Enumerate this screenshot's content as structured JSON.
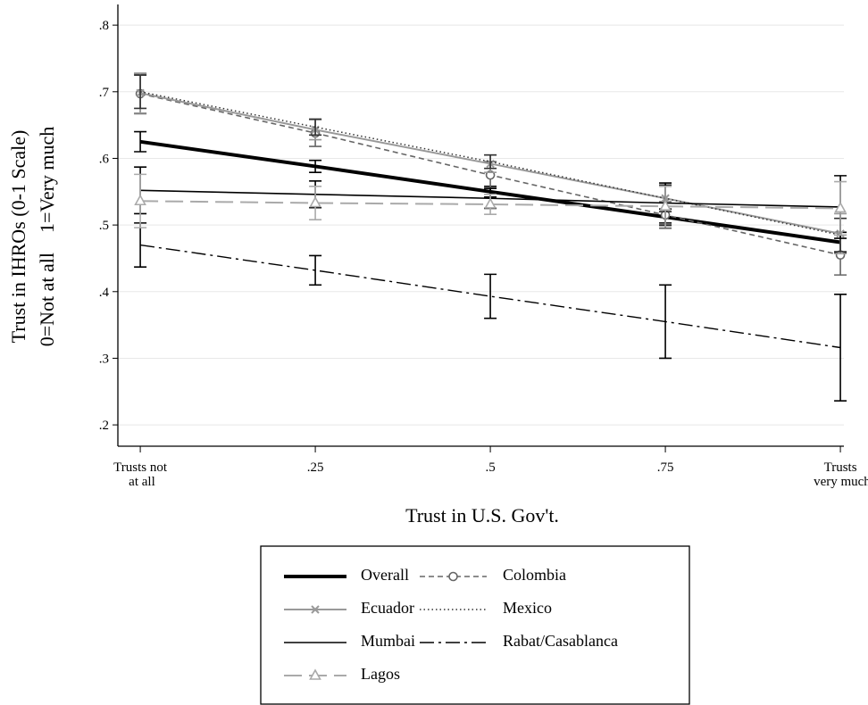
{
  "chart_data": {
    "type": "line",
    "xlabel": "Trust in U.S. Gov't.",
    "ylabel": "Trust in IHROs (0-1 Scale)",
    "ylabel2": "0=Not at all    1=Very much",
    "x": [
      0,
      0.25,
      0.5,
      0.75,
      1
    ],
    "xlim": [
      -0.032,
      1.005
    ],
    "ylim": [
      0.168,
      0.831
    ],
    "xticks": [
      {
        "value": 0,
        "label": "Trusts not\nat all"
      },
      {
        "value": 0.25,
        "label": ".25"
      },
      {
        "value": 0.5,
        "label": ".5"
      },
      {
        "value": 0.75,
        "label": ".75"
      },
      {
        "value": 1,
        "label": "Trusts\nvery much"
      }
    ],
    "yticks": [
      {
        "value": 0.2,
        "label": ".2"
      },
      {
        "value": 0.3,
        "label": ".3"
      },
      {
        "value": 0.4,
        "label": ".4"
      },
      {
        "value": 0.5,
        "label": ".5"
      },
      {
        "value": 0.6,
        "label": ".6"
      },
      {
        "value": 0.7,
        "label": ".7"
      },
      {
        "value": 0.8,
        "label": ".8"
      }
    ],
    "grid": true,
    "legend": "bottom",
    "series": [
      {
        "name": "Overall",
        "color": "#000000",
        "width": 4,
        "style": "solid",
        "values": [
          0.625,
          0.588,
          0.55,
          0.512,
          0.474
        ],
        "errors": [
          0.015,
          0.009,
          0.008,
          0.012,
          0.015
        ]
      },
      {
        "name": "Colombia",
        "color": "#666666",
        "width": 1.6,
        "style": "dashed",
        "marker": "circle",
        "values": [
          0.697,
          0.638,
          0.575,
          0.515,
          0.455
        ],
        "errors": [
          0.03,
          0.02,
          0.02,
          0.02,
          0.03
        ]
      },
      {
        "name": "Ecuador",
        "color": "#999999",
        "width": 2,
        "style": "solid",
        "marker": "x",
        "values": [
          0.698,
          0.643,
          0.592,
          0.54,
          0.487
        ],
        "errors": [
          0.03,
          0.015,
          0.013,
          0.02,
          0.03
        ]
      },
      {
        "name": "Mexico",
        "color": "#333333",
        "width": 1.5,
        "style": "dotted",
        "values": [
          0.7,
          0.647,
          0.595,
          0.54,
          0.485
        ],
        "errors": [
          0.025,
          0.012,
          0.01,
          0.02,
          0.025
        ]
      },
      {
        "name": "Mumbai",
        "color": "#000000",
        "width": 1.6,
        "style": "solid",
        "values": [
          0.552,
          0.546,
          0.54,
          0.533,
          0.527
        ],
        "errors": [
          0.035,
          0.02,
          0.015,
          0.03,
          0.047
        ]
      },
      {
        "name": "Rabat/Casablanca",
        "color": "#000000",
        "width": 1.4,
        "style": "dashdot",
        "values": [
          0.47,
          0.432,
          0.393,
          0.355,
          0.316
        ],
        "errors": [
          0.033,
          0.022,
          0.033,
          0.055,
          0.08
        ]
      },
      {
        "name": "Lagos",
        "color": "#aaaaaa",
        "width": 2,
        "style": "longdash",
        "marker": "triangle",
        "values": [
          0.536,
          0.533,
          0.531,
          0.528,
          0.525
        ],
        "errors": [
          0.04,
          0.025,
          0.015,
          0.03,
          0.04
        ]
      }
    ]
  }
}
